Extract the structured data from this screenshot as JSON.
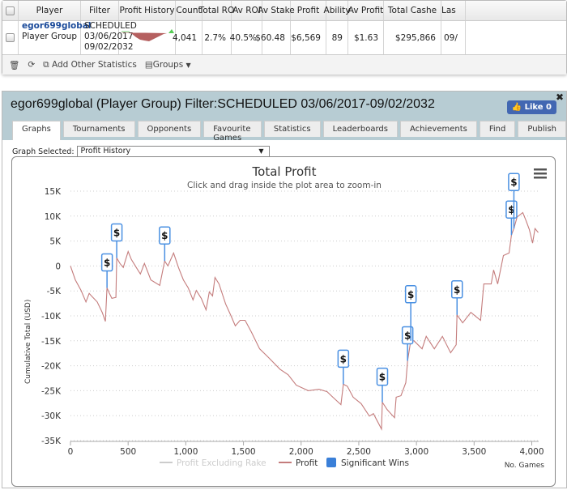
{
  "table": {
    "headers": [
      "Player",
      "Filter",
      "Profit History",
      "Count",
      "Total RO",
      "Av ROI",
      "Av Stake",
      "Profit",
      "Ability",
      "Av Profit",
      "Total Cashe",
      "Las"
    ],
    "row": {
      "player_name": "egor699global",
      "player_type": "Player Group",
      "filter": [
        "SCHEDULED",
        "03/06/2017",
        "09/02/2032"
      ],
      "count": "4,041",
      "total_roi": "2.7%",
      "av_roi": "40.5%",
      "av_stake": "$60.48",
      "profit": "$6,569",
      "ability": "89",
      "av_profit": "$1.63",
      "total_cashed": "$295,866",
      "last": "09/"
    },
    "footer": {
      "add_stats": "Add Other Statistics",
      "groups": "Groups"
    }
  },
  "panel": {
    "title": "egor699global (Player Group) Filter:SCHEDULED 03/06/2017-09/02/2032",
    "like": "Like 0",
    "tabs": [
      "Graphs",
      "Tournaments",
      "Opponents",
      "Favourite Games",
      "Statistics",
      "Leaderboards",
      "Achievements",
      "Find",
      "Publish"
    ],
    "graph_label": "Graph Selected:",
    "graph_value": "Profit History"
  },
  "chart_data": {
    "type": "line",
    "title": "Total Profit",
    "subtitle": "Click and drag inside the plot area to zoom-in",
    "ylabel": "Cumulative Total (USD)",
    "xlabel": "No. Games",
    "ylim": [
      -35000,
      15000
    ],
    "xlim": [
      0,
      4060
    ],
    "yticks": [
      "15K",
      "10K",
      "5K",
      "0",
      "-5K",
      "-10K",
      "-15K",
      "-20K",
      "-25K",
      "-30K",
      "-35K"
    ],
    "xticks": [
      "0",
      "500",
      "1,000",
      "1,500",
      "2,000",
      "2,500",
      "3,000",
      "3,500",
      "4,000"
    ],
    "legend": [
      "Profit Excluding Rake",
      "Profit",
      "Significant Wins"
    ],
    "colors": {
      "profit": "#c47c7c",
      "wins": "#4a90e2",
      "rake": "#cccccc"
    },
    "series": [
      {
        "name": "Profit",
        "points": [
          [
            0,
            0
          ],
          [
            42,
            -2800
          ],
          [
            92,
            -4900
          ],
          [
            134,
            -7200
          ],
          [
            162,
            -5500
          ],
          [
            190,
            -6200
          ],
          [
            232,
            -7200
          ],
          [
            275,
            -9300
          ],
          [
            303,
            -11100
          ],
          [
            317,
            -4400
          ],
          [
            338,
            -5500
          ],
          [
            359,
            -6500
          ],
          [
            394,
            -6300
          ],
          [
            401,
            1600
          ],
          [
            429,
            500
          ],
          [
            458,
            -300
          ],
          [
            500,
            2900
          ],
          [
            528,
            1300
          ],
          [
            570,
            -300
          ],
          [
            606,
            -1600
          ],
          [
            641,
            500
          ],
          [
            669,
            -1100
          ],
          [
            697,
            -2800
          ],
          [
            774,
            -3900
          ],
          [
            817,
            1000
          ],
          [
            845,
            0
          ],
          [
            894,
            2600
          ],
          [
            936,
            -300
          ],
          [
            979,
            -2800
          ],
          [
            1021,
            -4400
          ],
          [
            1063,
            -6800
          ],
          [
            1091,
            -4900
          ],
          [
            1134,
            -6500
          ],
          [
            1176,
            -8800
          ],
          [
            1204,
            -5200
          ],
          [
            1232,
            -6000
          ],
          [
            1253,
            -2300
          ],
          [
            1288,
            -3600
          ],
          [
            1345,
            -7600
          ],
          [
            1394,
            -10100
          ],
          [
            1429,
            -12000
          ],
          [
            1471,
            -10900
          ],
          [
            1514,
            -10900
          ],
          [
            1570,
            -13300
          ],
          [
            1640,
            -16600
          ],
          [
            1711,
            -18200
          ],
          [
            1817,
            -20700
          ],
          [
            1887,
            -21800
          ],
          [
            1958,
            -23900
          ],
          [
            2063,
            -25000
          ],
          [
            2155,
            -24700
          ],
          [
            2225,
            -25200
          ],
          [
            2275,
            -26300
          ],
          [
            2345,
            -27800
          ],
          [
            2366,
            -23700
          ],
          [
            2401,
            -24100
          ],
          [
            2451,
            -26300
          ],
          [
            2521,
            -27600
          ],
          [
            2592,
            -30100
          ],
          [
            2627,
            -29600
          ],
          [
            2697,
            -32700
          ],
          [
            2704,
            -27300
          ],
          [
            2746,
            -28800
          ],
          [
            2810,
            -30400
          ],
          [
            2824,
            -26300
          ],
          [
            2866,
            -26000
          ],
          [
            2908,
            -23400
          ],
          [
            2923,
            -19000
          ],
          [
            2951,
            -15000
          ],
          [
            2979,
            -15000
          ],
          [
            3049,
            -16600
          ],
          [
            3085,
            -14100
          ],
          [
            3155,
            -16600
          ],
          [
            3225,
            -14100
          ],
          [
            3296,
            -17400
          ],
          [
            3345,
            -15800
          ],
          [
            3352,
            -9800
          ],
          [
            3401,
            -11400
          ],
          [
            3472,
            -9300
          ],
          [
            3556,
            -10900
          ],
          [
            3584,
            -3600
          ],
          [
            3648,
            -3600
          ],
          [
            3669,
            -800
          ],
          [
            3704,
            -3600
          ],
          [
            3754,
            2100
          ],
          [
            3803,
            2600
          ],
          [
            3824,
            6200
          ],
          [
            3845,
            7500
          ],
          [
            3873,
            9800
          ],
          [
            3922,
            10700
          ],
          [
            3950,
            9100
          ],
          [
            3979,
            7300
          ],
          [
            4007,
            4600
          ],
          [
            4028,
            7500
          ],
          [
            4056,
            6700
          ]
        ]
      }
    ],
    "significant_wins": [
      [
        317,
        -4400,
        0
      ],
      [
        401,
        1600,
        0
      ],
      [
        817,
        1000,
        0
      ],
      [
        2366,
        -23700,
        0
      ],
      [
        2704,
        -27300,
        0
      ],
      [
        2923,
        -19000,
        0
      ],
      [
        2951,
        -15000,
        1
      ],
      [
        3352,
        -9800,
        0
      ],
      [
        3824,
        6200,
        0
      ],
      [
        3845,
        7500,
        1
      ]
    ],
    "marker_label": "$"
  }
}
